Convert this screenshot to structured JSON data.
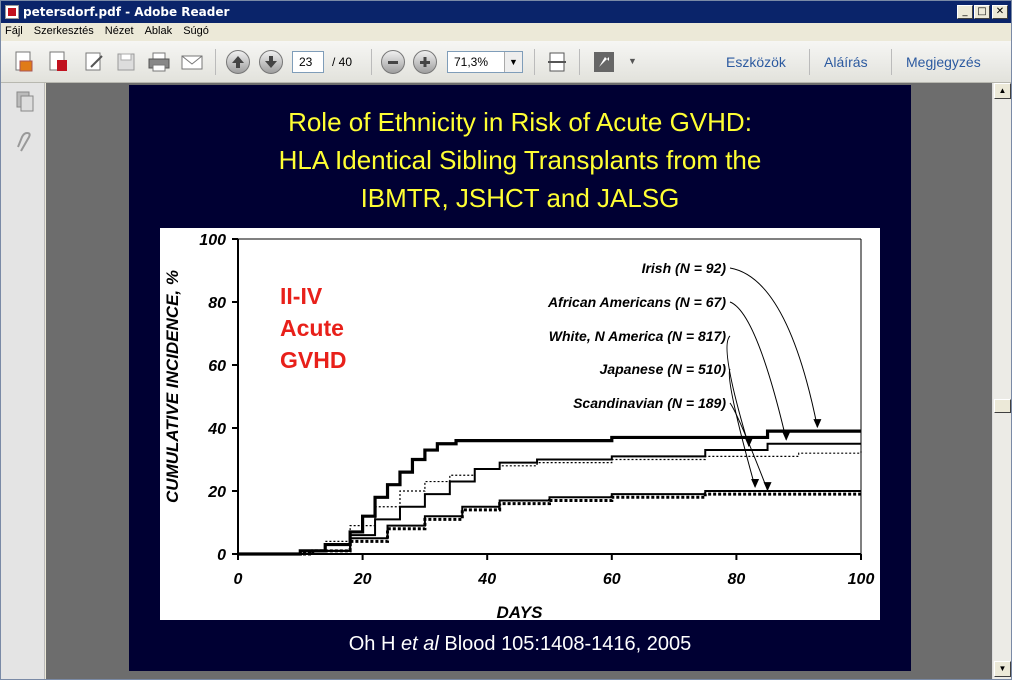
{
  "window": {
    "title": "petersdorf.pdf - Adobe Reader",
    "min_glyph": "_",
    "max_glyph": "□",
    "close_glyph": "✕"
  },
  "menu": [
    "Fájl",
    "Szerkesztés",
    "Nézet",
    "Ablak",
    "Súgó"
  ],
  "toolbar": {
    "page_current": "23",
    "page_total": "/ 40",
    "zoom": "71,3%",
    "tools_link": "Eszközök",
    "sign_link": "Aláírás",
    "comment_link": "Megjegyzés"
  },
  "slide": {
    "title_lines": [
      "Role of Ethnicity in Risk of Acute GVHD:",
      "HLA Identical Sibling Transplants from the",
      "IBMTR, JSHCT and JALSG"
    ],
    "citation_pre": "Oh H ",
    "citation_ital": "et al",
    "citation_post": " Blood 105:1408-1416, 2005"
  },
  "chart_data": {
    "type": "line",
    "title": "",
    "inset_label": [
      "II-IV",
      "Acute",
      "GVHD"
    ],
    "xlabel": "DAYS",
    "ylabel": "CUMULATIVE INCIDENCE, %",
    "xlim": [
      0,
      100
    ],
    "ylim": [
      0,
      100
    ],
    "xticks": [
      0,
      20,
      40,
      60,
      80,
      100
    ],
    "yticks": [
      0,
      20,
      40,
      60,
      80,
      100
    ],
    "grid": false,
    "series": [
      {
        "name": "Irish (N = 92)",
        "style": "thick",
        "x": [
          0,
          10,
          14,
          18,
          20,
          22,
          24,
          26,
          28,
          30,
          32,
          35,
          40,
          50,
          60,
          70,
          85,
          100
        ],
        "y": [
          0,
          1,
          3,
          7,
          12,
          18,
          22,
          26,
          30,
          33,
          35,
          36,
          36,
          36,
          37,
          37,
          39,
          39
        ]
      },
      {
        "name": "African Americans (N = 67)",
        "style": "solid",
        "x": [
          0,
          12,
          18,
          22,
          26,
          30,
          34,
          38,
          42,
          48,
          60,
          75,
          85,
          100
        ],
        "y": [
          0,
          1,
          6,
          11,
          15,
          19,
          23,
          27,
          29,
          30,
          31,
          33,
          35,
          35
        ]
      },
      {
        "name": "White, N America (N = 817)",
        "style": "dotted",
        "x": [
          0,
          10,
          14,
          18,
          22,
          26,
          30,
          34,
          38,
          42,
          48,
          60,
          75,
          90,
          100
        ],
        "y": [
          0,
          1,
          4,
          9,
          15,
          20,
          23,
          25,
          27,
          28,
          29,
          30,
          31,
          32,
          33
        ]
      },
      {
        "name": "Japanese (N = 510)",
        "style": "solid",
        "x": [
          0,
          12,
          18,
          24,
          30,
          36,
          42,
          50,
          60,
          75,
          100
        ],
        "y": [
          0,
          1,
          5,
          9,
          12,
          15,
          17,
          18,
          19,
          20,
          20
        ]
      },
      {
        "name": "Scandinavian (N = 189)",
        "style": "dotted-thick",
        "x": [
          0,
          12,
          18,
          24,
          30,
          36,
          42,
          50,
          60,
          75,
          100
        ],
        "y": [
          0,
          1,
          4,
          8,
          11,
          14,
          16,
          17,
          18,
          19,
          19
        ]
      }
    ]
  }
}
